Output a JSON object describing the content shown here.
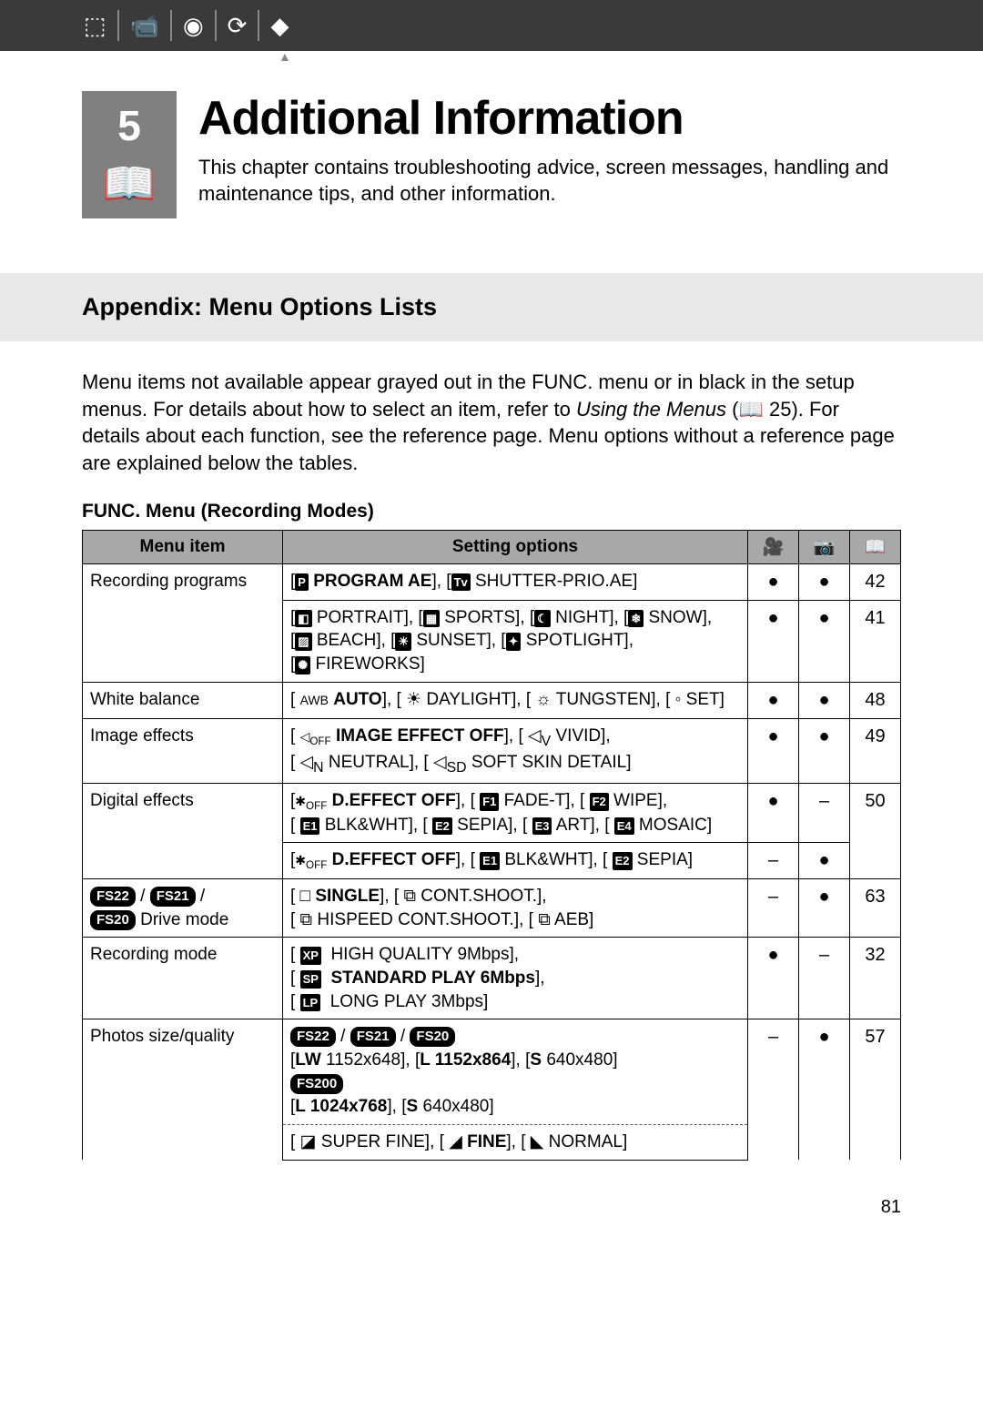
{
  "chapter": {
    "number": "5",
    "title": "Additional Information",
    "description": "This chapter contains troubleshooting advice, screen messages, handling and maintenance tips, and other information."
  },
  "appendix_heading": "Appendix: Menu Options Lists",
  "intro": {
    "part1": "Menu items not available appear grayed out in the FUNC. menu or in black in the setup menus. For details about how to select an item, refer to ",
    "ital": "Using the Menus",
    "part2": " (📖 25). For details about each function, see the reference page. Menu options without a reference page are explained below the tables."
  },
  "table_caption": "FUNC. Menu (Recording Modes)",
  "columns": {
    "c1": "Menu item",
    "c2": "Setting options"
  },
  "rows": {
    "rec_prog": {
      "item": "Recording programs",
      "page1": "42",
      "page2": "41"
    },
    "wb": {
      "item": "White balance",
      "page": "48"
    },
    "ie": {
      "item": "Image effects",
      "page": "49"
    },
    "de": {
      "item": "Digital effects",
      "page": "50"
    },
    "drive": {
      "item_suffix": " Drive mode",
      "page": "63"
    },
    "recmode": {
      "item": "Recording mode",
      "page": "32"
    },
    "psize": {
      "item": "Photos size/quality",
      "page": "57"
    }
  },
  "badges": {
    "fs22": "FS22",
    "fs21": "FS21",
    "fs20": "FS20",
    "fs200": "FS200"
  },
  "page_number": "81",
  "colors": {
    "top_bar": "#3a3a3a",
    "band": "#e8e8e8",
    "th_bg": "#a8a8a8",
    "chapter_box": "#808080"
  }
}
